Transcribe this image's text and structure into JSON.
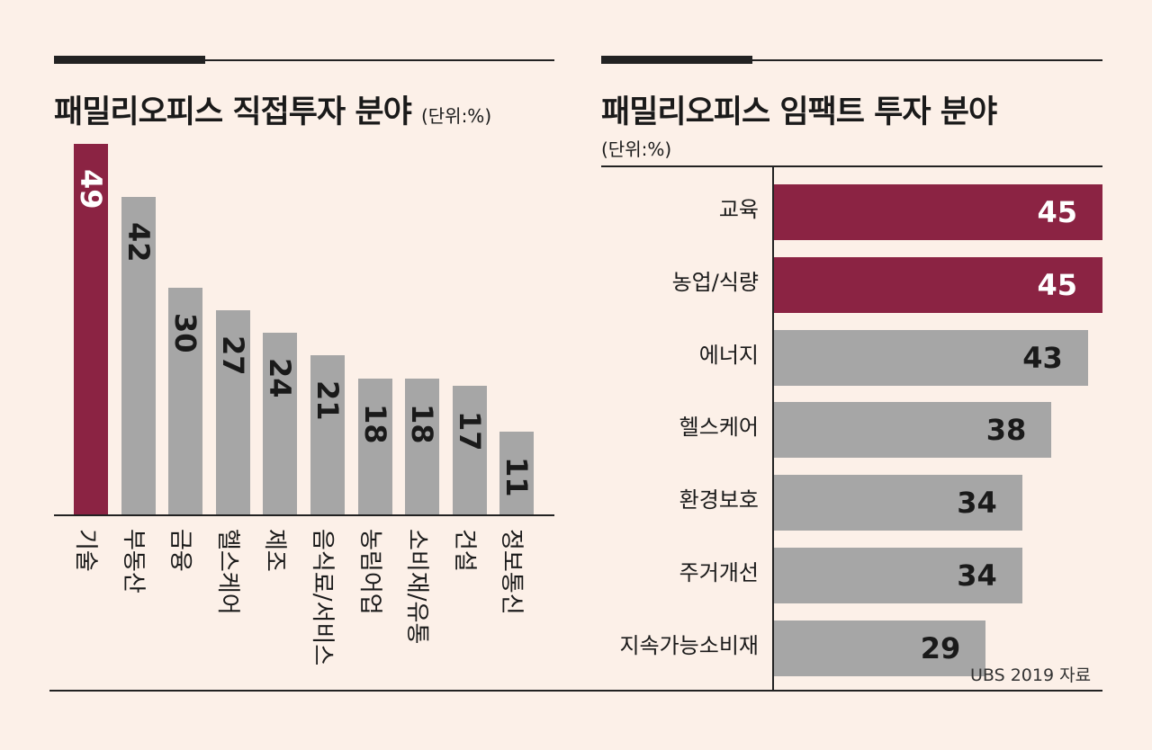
{
  "colors": {
    "highlight": "#8b2343",
    "normal": "#a6a6a6",
    "background": "#fcf0e8",
    "ink": "#222222"
  },
  "chart_data": [
    {
      "type": "bar",
      "orientation": "vertical",
      "title": "패밀리오피스 직접투자 분야",
      "unit": "(단위:%)",
      "categories": [
        "기술",
        "부동산",
        "금융",
        "헬스케어",
        "제조",
        "음식료/서비스",
        "농림어업",
        "소비재/유통",
        "건설",
        "정보통신"
      ],
      "values": [
        49,
        42,
        30,
        27,
        24,
        21,
        18,
        18,
        17,
        11
      ],
      "highlight": [
        true,
        false,
        false,
        false,
        false,
        false,
        false,
        false,
        false,
        false
      ],
      "ylim": [
        0,
        49
      ]
    },
    {
      "type": "bar",
      "orientation": "horizontal",
      "title": "패밀리오피스 임팩트 투자 분야",
      "unit": "(단위:%)",
      "categories": [
        "교육",
        "농업/식량",
        "에너지",
        "헬스케어",
        "환경보호",
        "주거개선",
        "지속가능소비재"
      ],
      "values": [
        45,
        45,
        43,
        38,
        34,
        34,
        29
      ],
      "highlight": [
        true,
        true,
        false,
        false,
        false,
        false,
        false
      ],
      "xlim": [
        0,
        45
      ]
    }
  ],
  "source": "UBS 2019 자료"
}
